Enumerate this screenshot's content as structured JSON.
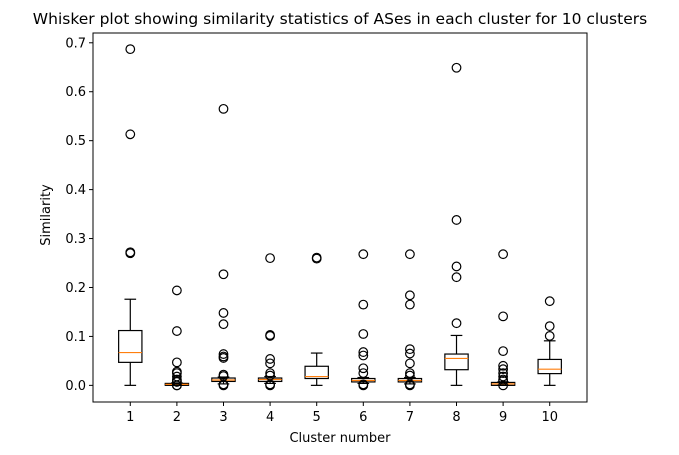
{
  "chart_data": {
    "type": "box",
    "title": "Whisker plot showing similarity statistics of ASes in each cluster for 10 clusters",
    "xlabel": "Cluster number",
    "ylabel": "Similarity",
    "categories": [
      "1",
      "2",
      "3",
      "4",
      "5",
      "6",
      "7",
      "8",
      "9",
      "10"
    ],
    "ylim": [
      -0.034,
      0.72
    ],
    "yticks": [
      0.0,
      0.1,
      0.2,
      0.3,
      0.4,
      0.5,
      0.6,
      0.7
    ],
    "ytick_labels": [
      "0.0",
      "0.1",
      "0.2",
      "0.3",
      "0.4",
      "0.5",
      "0.6",
      "0.7"
    ],
    "grid": false,
    "colors": {
      "box": "#000000",
      "median": "#ff7f0e",
      "flier": "#000000"
    },
    "boxes": [
      {
        "label": "1",
        "whislo": 0.0,
        "q1": 0.047,
        "med": 0.067,
        "q3": 0.112,
        "whishi": 0.176,
        "fliers": [
          0.687,
          0.513,
          0.272,
          0.27
        ]
      },
      {
        "label": "2",
        "whislo": 0.0,
        "q1": 0.0,
        "med": 0.002,
        "q3": 0.004,
        "whishi": 0.005,
        "fliers": [
          0.194,
          0.111,
          0.047,
          0.028,
          0.025,
          0.018,
          0.012,
          0.009,
          0.007,
          0.0,
          0.0
        ]
      },
      {
        "label": "3",
        "whislo": 0.003,
        "q1": 0.008,
        "med": 0.011,
        "q3": 0.015,
        "whishi": 0.017,
        "fliers": [
          0.565,
          0.227,
          0.148,
          0.125,
          0.064,
          0.059,
          0.056,
          0.022,
          0.019,
          0.002,
          0.0
        ]
      },
      {
        "label": "4",
        "whislo": 0.004,
        "q1": 0.008,
        "med": 0.012,
        "q3": 0.015,
        "whishi": 0.018,
        "fliers": [
          0.26,
          0.103,
          0.101,
          0.054,
          0.045,
          0.025,
          0.02,
          0.002,
          0.0
        ]
      },
      {
        "label": "5",
        "whislo": 0.0,
        "q1": 0.014,
        "med": 0.018,
        "q3": 0.039,
        "whishi": 0.066,
        "fliers": [
          0.261,
          0.259
        ]
      },
      {
        "label": "6",
        "whislo": 0.004,
        "q1": 0.007,
        "med": 0.01,
        "q3": 0.014,
        "whishi": 0.016,
        "fliers": [
          0.268,
          0.165,
          0.105,
          0.068,
          0.061,
          0.035,
          0.025,
          0.002,
          0.0
        ]
      },
      {
        "label": "7",
        "whislo": 0.003,
        "q1": 0.007,
        "med": 0.01,
        "q3": 0.014,
        "whishi": 0.016,
        "fliers": [
          0.268,
          0.184,
          0.165,
          0.074,
          0.065,
          0.045,
          0.025,
          0.02,
          0.002,
          0.0
        ]
      },
      {
        "label": "8",
        "whislo": 0.0,
        "q1": 0.032,
        "med": 0.055,
        "q3": 0.064,
        "whishi": 0.102,
        "fliers": [
          0.649,
          0.338,
          0.243,
          0.221,
          0.127
        ]
      },
      {
        "label": "9",
        "whislo": 0.0,
        "q1": 0.0,
        "med": 0.003,
        "q3": 0.006,
        "whishi": 0.007,
        "fliers": [
          0.268,
          0.141,
          0.07,
          0.04,
          0.033,
          0.025,
          0.018,
          0.012,
          0.009,
          0.0
        ]
      },
      {
        "label": "10",
        "whislo": 0.0,
        "q1": 0.024,
        "med": 0.033,
        "q3": 0.053,
        "whishi": 0.091,
        "fliers": [
          0.172,
          0.121,
          0.101
        ]
      }
    ]
  }
}
